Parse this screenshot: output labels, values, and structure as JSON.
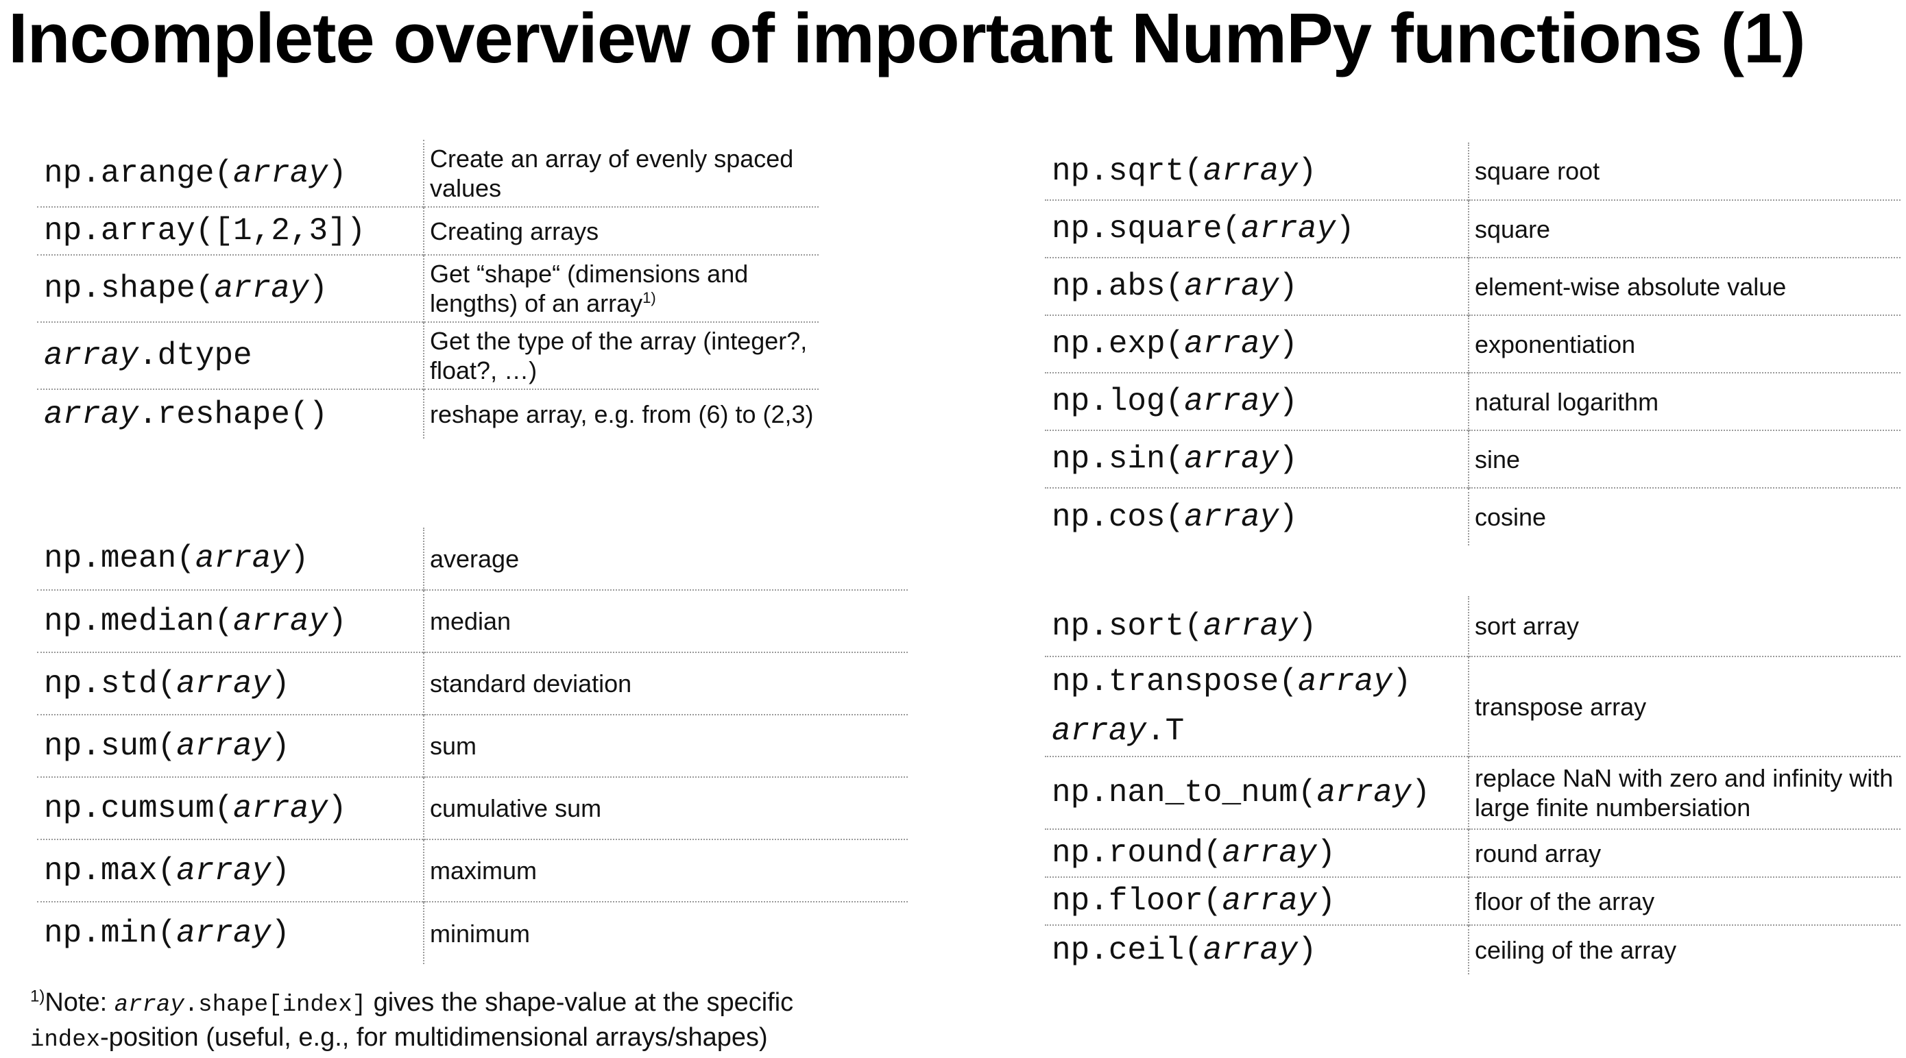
{
  "title": "Incomplete overview of important NumPy functions (1)",
  "left_top": [
    {
      "pre": "np.arange(",
      "arg": "array",
      "post": ")",
      "desc": "Create an array of evenly spaced values"
    },
    {
      "pre": "np.array([1,2,3])",
      "arg": "",
      "post": "",
      "desc": "Creating arrays"
    },
    {
      "pre": "np.shape(",
      "arg": "array",
      "post": ")",
      "desc": "Get “shape“ (dimensions and lengths) of an array",
      "desc_sup": "1)"
    },
    {
      "pre": "",
      "arg": "array",
      "post": ".dtype",
      "desc": "Get the type of the array (integer?, float?, …)"
    },
    {
      "pre": "",
      "arg": "array",
      "post": ".reshape()",
      "desc": "reshape array, e.g. from (6) to (2,3)"
    }
  ],
  "left_bottom": [
    {
      "pre": "np.mean(",
      "arg": "array",
      "post": ")",
      "desc": "average"
    },
    {
      "pre": "np.median(",
      "arg": "array",
      "post": ")",
      "desc": "median"
    },
    {
      "pre": "np.std(",
      "arg": "array",
      "post": ")",
      "desc": "standard deviation"
    },
    {
      "pre": "np.sum(",
      "arg": "array",
      "post": ")",
      "desc": "sum"
    },
    {
      "pre": "np.cumsum(",
      "arg": "array",
      "post": ")",
      "desc": "cumulative sum"
    },
    {
      "pre": "np.max(",
      "arg": "array",
      "post": ")",
      "desc": "maximum"
    },
    {
      "pre": "np.min(",
      "arg": "array",
      "post": ")",
      "desc": "minimum"
    }
  ],
  "right_top": [
    {
      "pre": "np.sqrt(",
      "arg": "array",
      "post": ")",
      "desc": "square root"
    },
    {
      "pre": "np.square(",
      "arg": "array",
      "post": ")",
      "desc": "square"
    },
    {
      "pre": "np.abs(",
      "arg": "array",
      "post": ")",
      "desc": "element-wise absolute value"
    },
    {
      "pre": "np.exp(",
      "arg": "array",
      "post": ")",
      "desc": "exponentiation"
    },
    {
      "pre": "np.log(",
      "arg": "array",
      "post": ")",
      "desc": "natural logarithm"
    },
    {
      "pre": "np.sin(",
      "arg": "array",
      "post": ")",
      "desc": "sine"
    },
    {
      "pre": "np.cos(",
      "arg": "array",
      "post": ")",
      "desc": "cosine"
    }
  ],
  "right_bottom": [
    {
      "pre": "np.sort(",
      "arg": "array",
      "post": ")",
      "desc": "sort array"
    },
    {
      "pre": "np.transpose(",
      "arg": "array",
      "post": ")",
      "pre2": "",
      "arg2": "array",
      "post2": ".T",
      "desc": "transpose array"
    },
    {
      "pre": "np.nan_to_num(",
      "arg": "array",
      "post": ")",
      "desc": "replace NaN with zero and infinity with large finite numbersiation"
    },
    {
      "pre": "np.round(",
      "arg": "array",
      "post": ")",
      "desc": "round array"
    },
    {
      "pre": "np.floor(",
      "arg": "array",
      "post": ")",
      "desc": "floor of the array"
    },
    {
      "pre": "np.ceil(",
      "arg": "array",
      "post": ")",
      "desc": "ceiling of the array"
    }
  ],
  "footnote": {
    "marker": "1)",
    "t1": "Note: ",
    "code1_arg": "array",
    "code1_rest": ".shape[index]",
    "t2": " gives the shape-value at the specific",
    "code2": "index",
    "t3": "-position (useful, e.g., for multidimensional arrays/shapes)"
  }
}
